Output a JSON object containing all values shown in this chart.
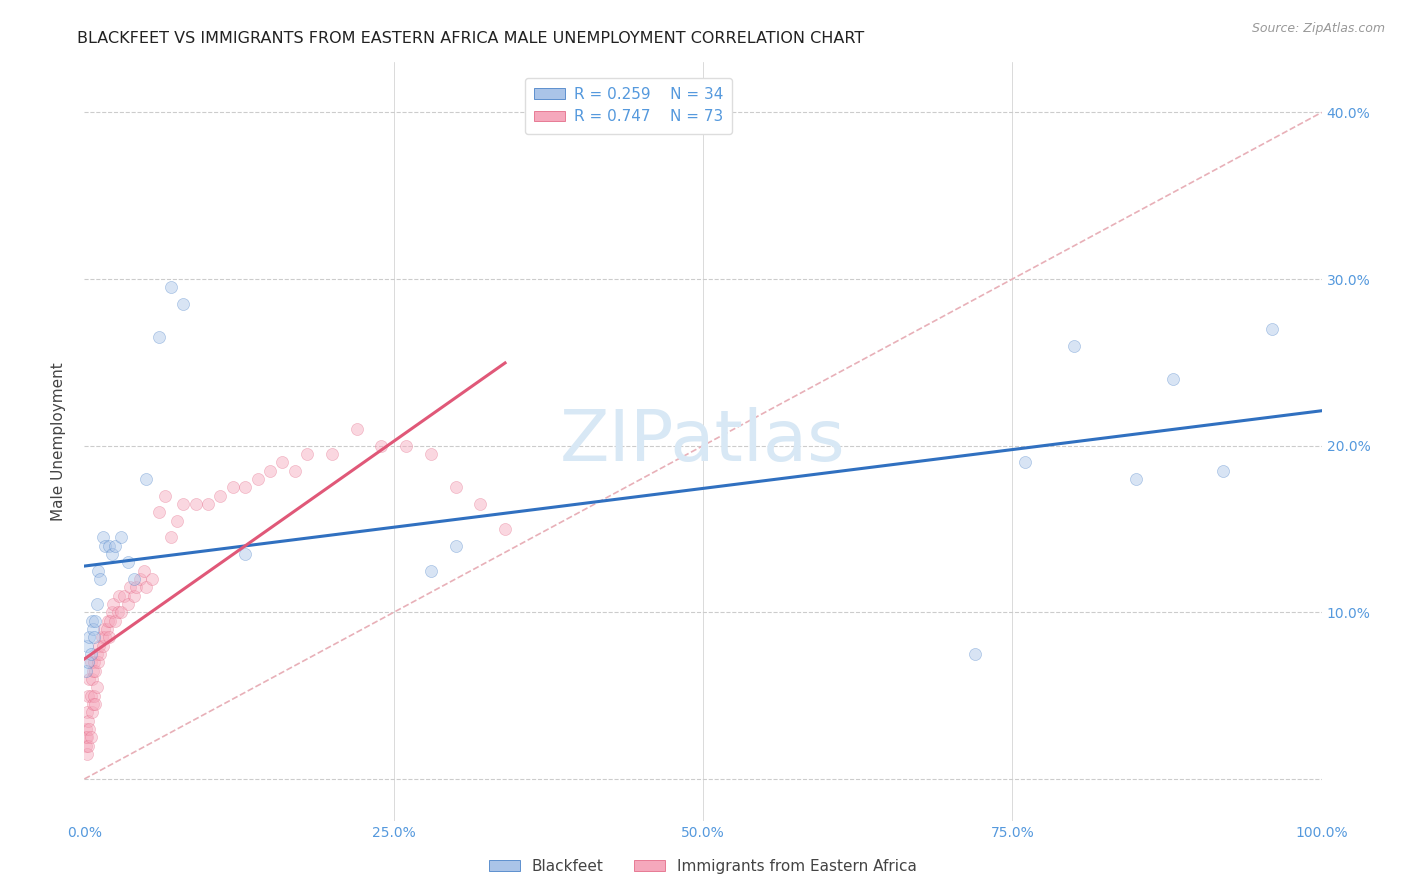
{
  "title": "BLACKFEET VS IMMIGRANTS FROM EASTERN AFRICA MALE UNEMPLOYMENT CORRELATION CHART",
  "source": "Source: ZipAtlas.com",
  "ylabel": "Male Unemployment",
  "series1_name": "Blackfeet",
  "series2_name": "Immigrants from Eastern Africa",
  "series1_R": "0.259",
  "series1_N": "34",
  "series2_R": "0.747",
  "series2_N": "73",
  "series1_color": "#aac4e8",
  "series2_color": "#f5a8bc",
  "series1_line_color": "#3070c0",
  "series2_line_color": "#e05878",
  "title_color": "#222222",
  "source_color": "#999999",
  "axis_label_color": "#444444",
  "tick_color": "#5599dd",
  "grid_color": "#cccccc",
  "diag_line_color": "#e8b0b8",
  "background": "#ffffff",
  "series1_x": [
    0.001,
    0.002,
    0.003,
    0.004,
    0.005,
    0.006,
    0.007,
    0.008,
    0.009,
    0.01,
    0.011,
    0.013,
    0.015,
    0.017,
    0.02,
    0.022,
    0.025,
    0.03,
    0.035,
    0.04,
    0.05,
    0.06,
    0.07,
    0.08,
    0.13,
    0.28,
    0.3,
    0.72,
    0.76,
    0.8,
    0.85,
    0.88,
    0.92,
    0.96
  ],
  "series1_y": [
    0.065,
    0.08,
    0.07,
    0.085,
    0.075,
    0.095,
    0.09,
    0.085,
    0.095,
    0.105,
    0.125,
    0.12,
    0.145,
    0.14,
    0.14,
    0.135,
    0.14,
    0.145,
    0.13,
    0.12,
    0.18,
    0.265,
    0.295,
    0.285,
    0.135,
    0.125,
    0.14,
    0.075,
    0.19,
    0.26,
    0.18,
    0.24,
    0.185,
    0.27
  ],
  "series2_x": [
    0.001,
    0.001,
    0.001,
    0.002,
    0.002,
    0.002,
    0.003,
    0.003,
    0.003,
    0.004,
    0.004,
    0.005,
    0.005,
    0.005,
    0.006,
    0.006,
    0.007,
    0.007,
    0.008,
    0.008,
    0.009,
    0.009,
    0.01,
    0.01,
    0.011,
    0.012,
    0.013,
    0.014,
    0.015,
    0.016,
    0.017,
    0.018,
    0.019,
    0.02,
    0.021,
    0.022,
    0.023,
    0.025,
    0.027,
    0.028,
    0.03,
    0.032,
    0.035,
    0.037,
    0.04,
    0.042,
    0.045,
    0.048,
    0.05,
    0.055,
    0.06,
    0.065,
    0.07,
    0.075,
    0.08,
    0.09,
    0.1,
    0.11,
    0.12,
    0.13,
    0.14,
    0.15,
    0.16,
    0.17,
    0.18,
    0.2,
    0.22,
    0.24,
    0.26,
    0.28,
    0.3,
    0.32,
    0.34
  ],
  "series2_y": [
    0.02,
    0.025,
    0.03,
    0.015,
    0.025,
    0.04,
    0.02,
    0.035,
    0.05,
    0.03,
    0.06,
    0.025,
    0.05,
    0.07,
    0.04,
    0.06,
    0.045,
    0.065,
    0.05,
    0.07,
    0.045,
    0.065,
    0.055,
    0.075,
    0.07,
    0.08,
    0.075,
    0.085,
    0.08,
    0.09,
    0.085,
    0.09,
    0.095,
    0.085,
    0.095,
    0.1,
    0.105,
    0.095,
    0.1,
    0.11,
    0.1,
    0.11,
    0.105,
    0.115,
    0.11,
    0.115,
    0.12,
    0.125,
    0.115,
    0.12,
    0.16,
    0.17,
    0.145,
    0.155,
    0.165,
    0.165,
    0.165,
    0.17,
    0.175,
    0.175,
    0.18,
    0.185,
    0.19,
    0.185,
    0.195,
    0.195,
    0.21,
    0.2,
    0.2,
    0.195,
    0.175,
    0.165,
    0.15
  ],
  "xlim": [
    0.0,
    1.0
  ],
  "ylim": [
    -0.025,
    0.43
  ],
  "yticks": [
    0.0,
    0.1,
    0.2,
    0.3,
    0.4
  ],
  "ytick_labels": [
    "",
    "10.0%",
    "20.0%",
    "30.0%",
    "40.0%"
  ],
  "xticks": [
    0.0,
    0.25,
    0.5,
    0.75,
    1.0
  ],
  "xtick_labels": [
    "0.0%",
    "25.0%",
    "50.0%",
    "75.0%",
    "100.0%"
  ],
  "marker_size": 75,
  "marker_alpha": 0.45,
  "trend1_x0": 0.0,
  "trend1_x1": 1.0,
  "trend2_x0": 0.0,
  "trend2_x1": 0.34,
  "watermark_text": "ZIPatlas",
  "watermark_color": "#d8e8f5",
  "watermark_fontsize": 52
}
